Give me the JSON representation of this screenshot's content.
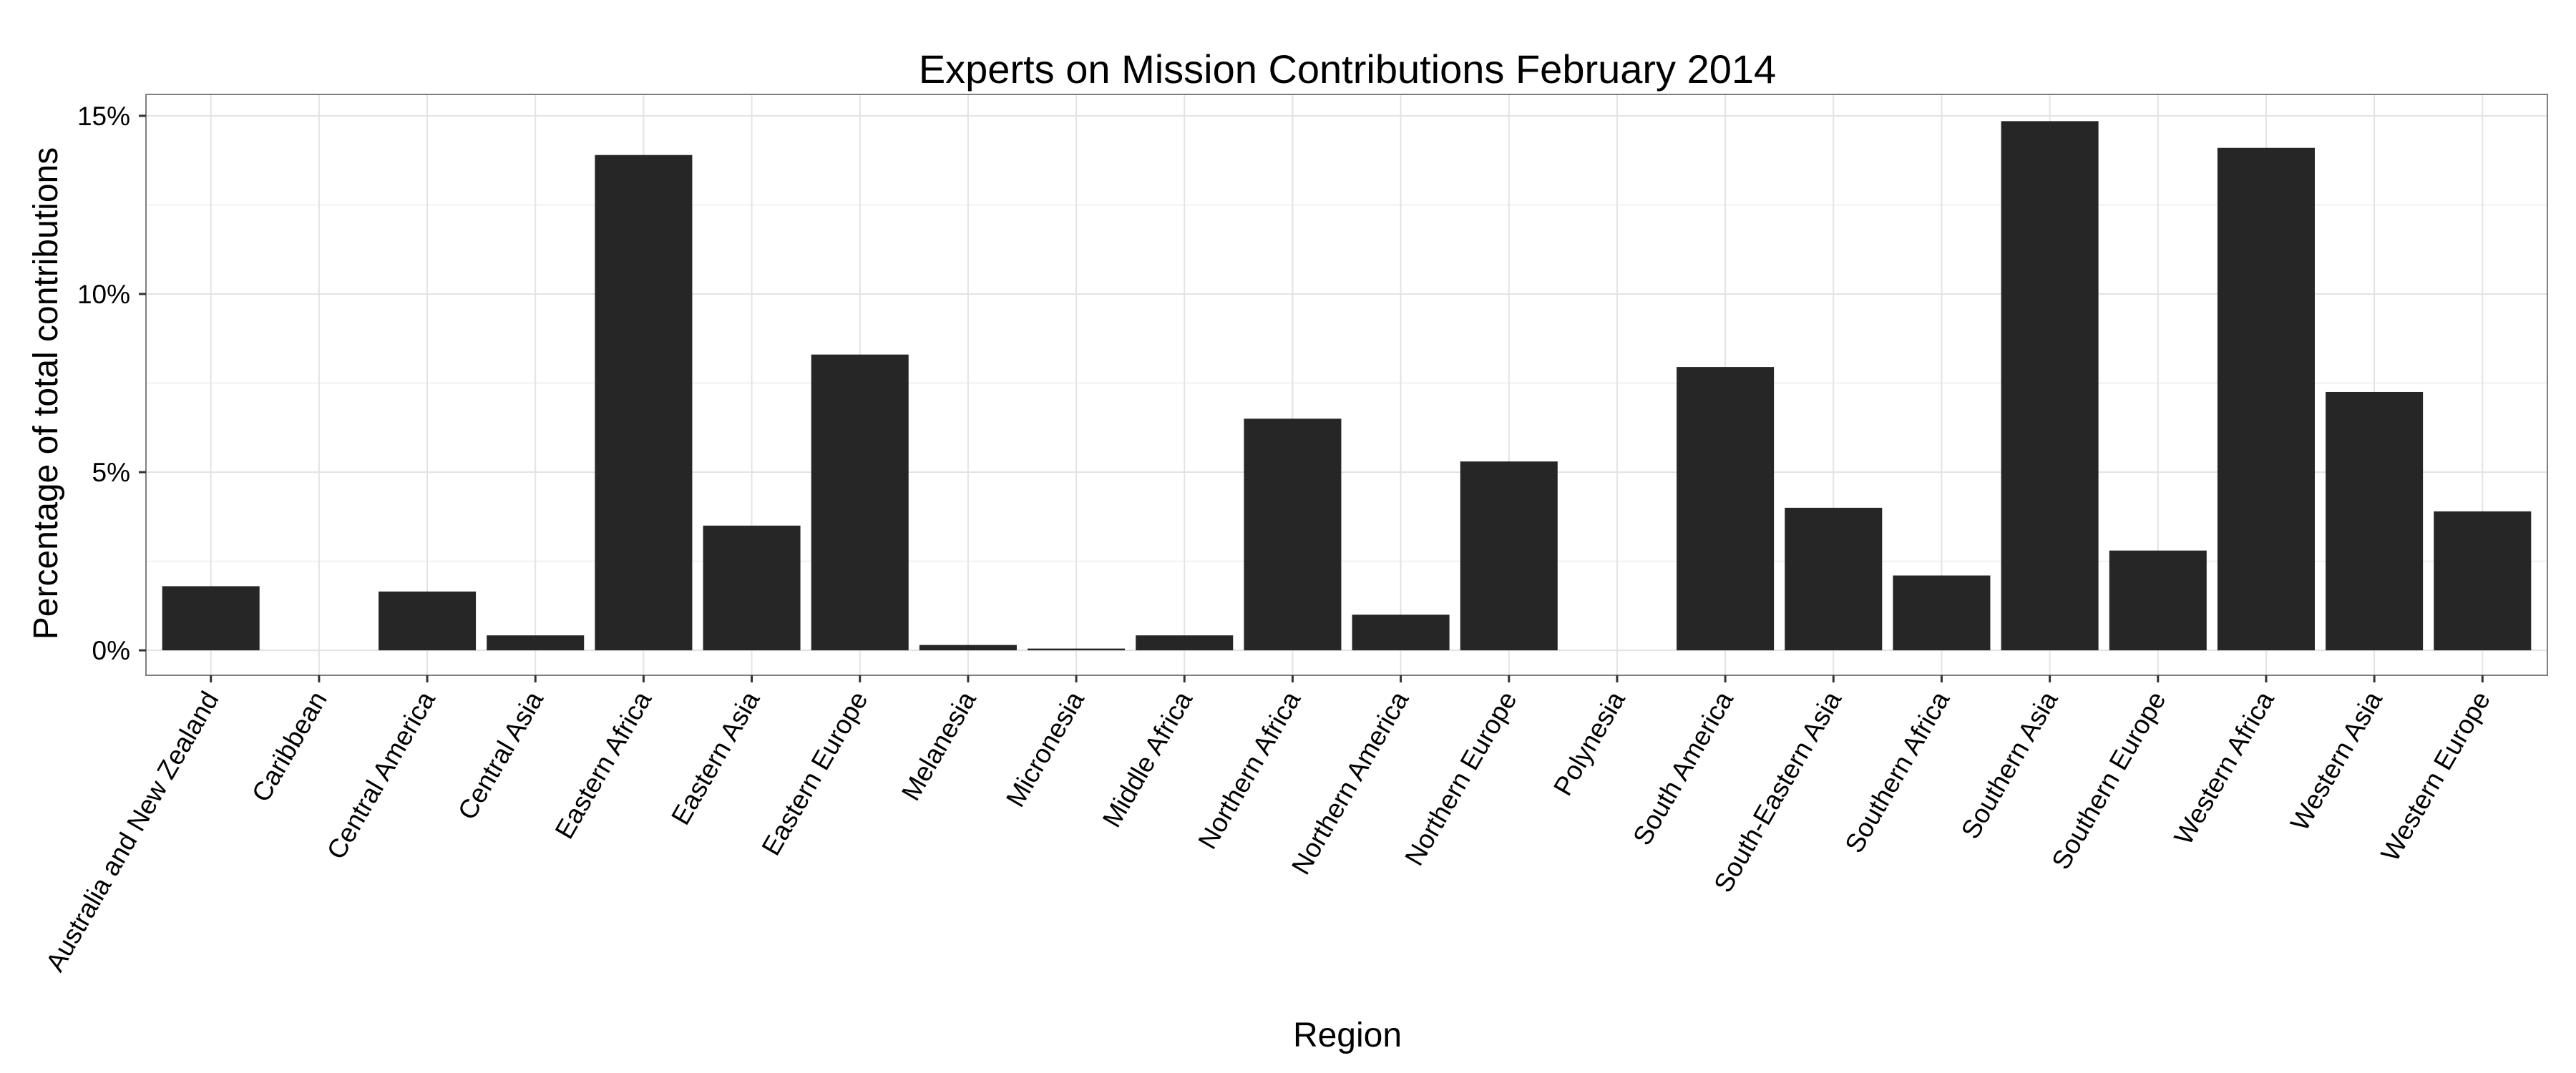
{
  "chart_data": {
    "type": "bar",
    "title": "Experts on Mission Contributions February 2014",
    "xlabel": "Region",
    "ylabel": "Percentage of total contributions",
    "categories": [
      "Australia and New Zealand",
      "Caribbean",
      "Central America",
      "Central Asia",
      "Eastern Africa",
      "Eastern Asia",
      "Eastern Europe",
      "Melanesia",
      "Micronesia",
      "Middle Africa",
      "Northern Africa",
      "Northern America",
      "Northern Europe",
      "Polynesia",
      "South America",
      "South-Eastern Asia",
      "Southern Africa",
      "Southern Asia",
      "Southern Europe",
      "Western Africa",
      "Western Asia",
      "Western Europe"
    ],
    "values": [
      1.8,
      0,
      1.65,
      0.42,
      13.9,
      3.5,
      8.3,
      0.15,
      0.05,
      0.42,
      6.5,
      1.0,
      5.3,
      0,
      7.95,
      4.0,
      2.1,
      14.85,
      2.8,
      14.1,
      7.25,
      3.9
    ],
    "value_unit": "%",
    "ylim": [
      -0.7,
      15.6
    ],
    "yticks": [
      0,
      5,
      10,
      15
    ],
    "ytick_labels": [
      "0%",
      "5%",
      "10%",
      "15%"
    ],
    "grid": true,
    "bar_color": "#262626",
    "background_color": "#ffffff"
  }
}
